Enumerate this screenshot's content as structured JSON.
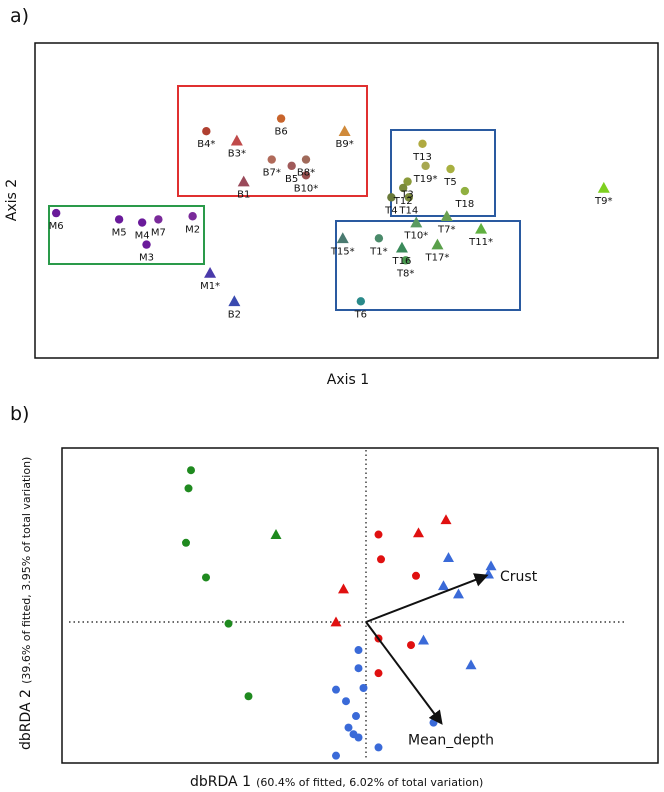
{
  "chart_data": [
    {
      "panel": "a)",
      "type": "scatter",
      "xlabel": "Axis 1",
      "ylabel": "Axis 2",
      "xlim": [
        0,
        100
      ],
      "ylim": [
        0,
        100
      ],
      "colors": {
        "B": "#b45a3a",
        "M": "#6a2a9a",
        "T": "#8a9a3a",
        "box_B": "#e03030",
        "box_M": "#2a9a4a",
        "box_T": "#2a5aa0"
      },
      "groups": [
        {
          "name": "B",
          "points": [
            {
              "label": "B6",
              "x": 39.5,
              "y": 76,
              "shape": "circle",
              "color": "#c8642c"
            },
            {
              "label": "B4*",
              "x": 27.5,
              "y": 72,
              "shape": "circle",
              "color": "#b04030"
            },
            {
              "label": "B3*",
              "x": 32.4,
              "y": 69,
              "shape": "triangle",
              "color": "#c04a4a"
            },
            {
              "label": "B9*",
              "x": 49.7,
              "y": 72,
              "shape": "triangle",
              "color": "#d08a3a"
            },
            {
              "label": "B7*",
              "x": 38.0,
              "y": 63,
              "shape": "circle",
              "color": "#b06a5a"
            },
            {
              "label": "B8*",
              "x": 43.5,
              "y": 63,
              "shape": "circle",
              "color": "#a06a5a"
            },
            {
              "label": "B5",
              "x": 41.2,
              "y": 61,
              "shape": "circle",
              "color": "#a05a5a"
            },
            {
              "label": "B10*",
              "x": 43.5,
              "y": 58,
              "shape": "circle",
              "color": "#9a5050"
            },
            {
              "label": "B1",
              "x": 33.5,
              "y": 56,
              "shape": "triangle",
              "color": "#9a4a5a"
            }
          ]
        },
        {
          "name": "M",
          "points": [
            {
              "label": "M6",
              "x": 3.4,
              "y": 46,
              "shape": "circle",
              "color": "#6a1a9a"
            },
            {
              "label": "M5",
              "x": 13.5,
              "y": 44,
              "shape": "circle",
              "color": "#6a1a9a"
            },
            {
              "label": "M4",
              "x": 17.2,
              "y": 43,
              "shape": "circle",
              "color": "#6a1a9a"
            },
            {
              "label": "M7",
              "x": 19.8,
              "y": 44,
              "shape": "circle",
              "color": "#7a2a9a"
            },
            {
              "label": "M2",
              "x": 25.3,
              "y": 45,
              "shape": "circle",
              "color": "#7a2a9a"
            },
            {
              "label": "M3",
              "x": 17.9,
              "y": 36,
              "shape": "circle",
              "color": "#6a1a9a"
            },
            {
              "label": "M1*",
              "x": 28.1,
              "y": 27,
              "shape": "triangle",
              "color": "#4a3aaa"
            },
            {
              "label": "B2",
              "x": 32.0,
              "y": 18,
              "shape": "triangle",
              "color": "#3a4ab0"
            }
          ]
        },
        {
          "name": "T",
          "points": [
            {
              "label": "T13",
              "x": 62.2,
              "y": 68,
              "shape": "circle",
              "color": "#b0aa40"
            },
            {
              "label": "T19*",
              "x": 62.7,
              "y": 61,
              "shape": "circle",
              "color": "#a8a850"
            },
            {
              "label": "T5",
              "x": 66.7,
              "y": 60,
              "shape": "circle",
              "color": "#a8b040"
            },
            {
              "label": "T18",
              "x": 69.0,
              "y": 53,
              "shape": "circle",
              "color": "#90b040"
            },
            {
              "label": "T3",
              "x": 59.8,
              "y": 56,
              "shape": "circle",
              "color": "#8a9a3a"
            },
            {
              "label": "T12",
              "x": 59.1,
              "y": 54,
              "shape": "circle",
              "color": "#7a8a3a"
            },
            {
              "label": "T4",
              "x": 57.2,
              "y": 51,
              "shape": "circle",
              "color": "#6a7a3a"
            },
            {
              "label": "T14",
              "x": 60.0,
              "y": 51,
              "shape": "circle",
              "color": "#7a8a3a"
            },
            {
              "label": "T9*",
              "x": 91.3,
              "y": 54,
              "shape": "triangle",
              "color": "#7ed020"
            },
            {
              "label": "T10*",
              "x": 61.2,
              "y": 43,
              "shape": "triangle",
              "color": "#5a9a60"
            },
            {
              "label": "T7*",
              "x": 66.1,
              "y": 45,
              "shape": "triangle",
              "color": "#6aa050"
            },
            {
              "label": "T11*",
              "x": 71.6,
              "y": 41,
              "shape": "triangle",
              "color": "#60b040"
            },
            {
              "label": "T15*",
              "x": 49.4,
              "y": 38,
              "shape": "triangle",
              "color": "#4a7a70"
            },
            {
              "label": "T1*",
              "x": 55.2,
              "y": 38,
              "shape": "circle",
              "color": "#4a8a6a"
            },
            {
              "label": "T16",
              "x": 58.9,
              "y": 35,
              "shape": "triangle",
              "color": "#3a8a5a"
            },
            {
              "label": "T8*",
              "x": 59.5,
              "y": 31,
              "shape": "circle",
              "color": "#4a9a50"
            },
            {
              "label": "T17*",
              "x": 64.6,
              "y": 36,
              "shape": "triangle",
              "color": "#5aa04a"
            },
            {
              "label": "T6",
              "x": 52.3,
              "y": 18,
              "shape": "circle",
              "color": "#2a8a8a"
            }
          ]
        }
      ]
    },
    {
      "panel": "b)",
      "type": "scatter",
      "xlabel_main": "dbRDA 1",
      "xlabel_detail": "(60.4% of fitted, 6.02% of total variation)",
      "ylabel_main": "dbRDA 2",
      "ylabel_detail": "(39.6% of fitted, 3.95% of total variation)",
      "xlim": [
        -1.0,
        1.0
      ],
      "ylim": [
        -1.0,
        1.0
      ],
      "vectors": [
        {
          "name": "Crust",
          "x": 0.48,
          "y": 0.28
        },
        {
          "name": "Mean_depth",
          "x": 0.3,
          "y": -0.61
        }
      ],
      "series": [
        {
          "name": "green",
          "color": "#1f8a1f",
          "points": [
            {
              "x": -0.7,
              "y": 0.92,
              "shape": "circle"
            },
            {
              "x": -0.71,
              "y": 0.81,
              "shape": "circle"
            },
            {
              "x": -0.72,
              "y": 0.48,
              "shape": "circle"
            },
            {
              "x": -0.64,
              "y": 0.27,
              "shape": "circle"
            },
            {
              "x": -0.55,
              "y": -0.01,
              "shape": "circle"
            },
            {
              "x": -0.47,
              "y": -0.45,
              "shape": "circle"
            },
            {
              "x": -0.36,
              "y": 0.53,
              "shape": "triangle"
            }
          ]
        },
        {
          "name": "red",
          "color": "#e01010",
          "points": [
            {
              "x": 0.05,
              "y": 0.53,
              "shape": "circle"
            },
            {
              "x": 0.21,
              "y": 0.54,
              "shape": "triangle"
            },
            {
              "x": 0.32,
              "y": 0.62,
              "shape": "triangle"
            },
            {
              "x": 0.06,
              "y": 0.38,
              "shape": "circle"
            },
            {
              "x": 0.2,
              "y": 0.28,
              "shape": "circle"
            },
            {
              "x": -0.09,
              "y": 0.2,
              "shape": "triangle"
            },
            {
              "x": -0.12,
              "y": 0.0,
              "shape": "triangle"
            },
            {
              "x": 0.05,
              "y": -0.1,
              "shape": "circle"
            },
            {
              "x": 0.18,
              "y": -0.14,
              "shape": "circle"
            },
            {
              "x": 0.05,
              "y": -0.31,
              "shape": "circle"
            }
          ]
        },
        {
          "name": "blue",
          "color": "#3a6ad8",
          "points": [
            {
              "x": 0.33,
              "y": 0.39,
              "shape": "triangle"
            },
            {
              "x": 0.5,
              "y": 0.34,
              "shape": "triangle"
            },
            {
              "x": 0.49,
              "y": 0.29,
              "shape": "triangle"
            },
            {
              "x": 0.31,
              "y": 0.22,
              "shape": "triangle"
            },
            {
              "x": 0.37,
              "y": 0.17,
              "shape": "triangle"
            },
            {
              "x": 0.23,
              "y": -0.11,
              "shape": "triangle"
            },
            {
              "x": 0.42,
              "y": -0.26,
              "shape": "triangle"
            },
            {
              "x": -0.03,
              "y": -0.17,
              "shape": "circle"
            },
            {
              "x": -0.03,
              "y": -0.28,
              "shape": "circle"
            },
            {
              "x": -0.01,
              "y": -0.4,
              "shape": "circle"
            },
            {
              "x": -0.12,
              "y": -0.41,
              "shape": "circle"
            },
            {
              "x": -0.08,
              "y": -0.48,
              "shape": "circle"
            },
            {
              "x": -0.04,
              "y": -0.57,
              "shape": "circle"
            },
            {
              "x": -0.07,
              "y": -0.64,
              "shape": "circle"
            },
            {
              "x": -0.05,
              "y": -0.68,
              "shape": "circle"
            },
            {
              "x": -0.03,
              "y": -0.7,
              "shape": "circle"
            },
            {
              "x": -0.12,
              "y": -0.81,
              "shape": "circle"
            },
            {
              "x": 0.27,
              "y": -0.61,
              "shape": "circle"
            },
            {
              "x": 0.05,
              "y": -0.76,
              "shape": "circle"
            }
          ]
        }
      ]
    }
  ]
}
